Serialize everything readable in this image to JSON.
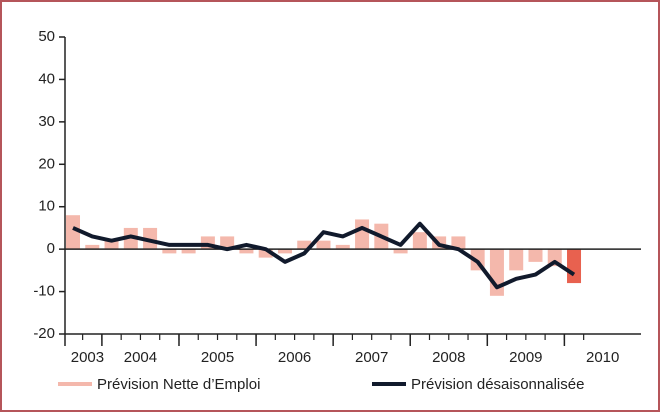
{
  "chart_data": {
    "type": "bar-line",
    "categories": [
      null,
      null,
      null,
      null,
      null,
      null,
      null,
      null,
      null,
      null,
      null,
      null,
      null,
      null,
      null,
      null,
      null,
      null,
      null,
      null,
      null,
      null,
      null,
      null,
      null,
      null,
      null
    ],
    "years": [
      "2003",
      "2004",
      "2005",
      "2006",
      "2007",
      "2008",
      "2009",
      "2010"
    ],
    "series": [
      {
        "name": "Prévision Nette d’Emploi",
        "type": "bar",
        "color": "#f4b8ac",
        "colors": [
          "#f4b8ac",
          "#f4b8ac",
          "#f4b8ac",
          "#f4b8ac",
          "#f4b8ac",
          "#f4b8ac",
          "#f4b8ac",
          "#f4b8ac",
          "#f4b8ac",
          "#f4b8ac",
          "#f4b8ac",
          "#f4b8ac",
          "#f4b8ac",
          "#f4b8ac",
          "#f4b8ac",
          "#f4b8ac",
          "#f4b8ac",
          "#f4b8ac",
          "#f4b8ac",
          "#f4b8ac",
          "#f4b8ac",
          "#f4b8ac",
          "#f4b8ac",
          "#f4b8ac",
          "#f4b8ac",
          "#f4b8ac",
          "#e8614f"
        ],
        "values": [
          8,
          1,
          2,
          5,
          5,
          -1,
          -1,
          3,
          3,
          -1,
          -2,
          -1,
          2,
          2,
          1,
          7,
          6,
          -1,
          4,
          3,
          3,
          -5,
          -11,
          -5,
          -3,
          -4,
          -8
        ]
      },
      {
        "name": "Prévision désaisonnalisée",
        "type": "line",
        "color": "#111a2c",
        "values": [
          5,
          3,
          2,
          3,
          2,
          1,
          1,
          1,
          0,
          1,
          0,
          -3,
          -1,
          4,
          3,
          5,
          3,
          1,
          6,
          1,
          0,
          -3,
          -9,
          -7,
          -6,
          -3,
          -6
        ]
      }
    ],
    "ylim": [
      -20,
      50
    ],
    "yticks": [
      -20,
      -10,
      0,
      10,
      20,
      30,
      40,
      50
    ]
  }
}
